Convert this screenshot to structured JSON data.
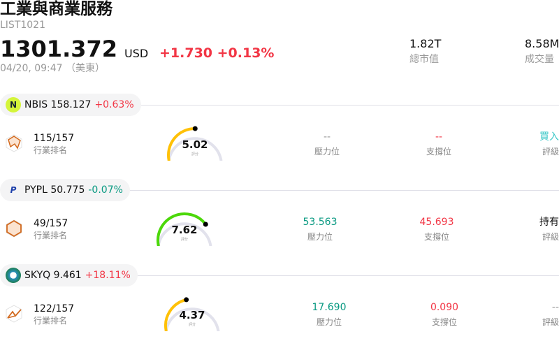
{
  "header": {
    "title": "工業與商業服務",
    "code": "LIST1021",
    "price": "1301.372",
    "currency": "USD",
    "change": "+1.730 +0.13%",
    "time": "04/20, 09:47 （美東）",
    "stats": [
      {
        "value": "1.82T",
        "label": "總市值"
      },
      {
        "value": "8.58M",
        "label": "成交量"
      }
    ]
  },
  "colors": {
    "up": "#f23645",
    "down": "#089981",
    "buy": "#3cc8c8",
    "gauge_track": "#e2e2ec"
  },
  "stocks": [
    {
      "ticker": "NBIS 158.127",
      "change": "+0.63%",
      "change_dir": "up",
      "logo": "nbis-logo",
      "rank": "115/157",
      "rank_label": "行業排名",
      "score": "5.02",
      "score_value": 5.02,
      "score_label": "評分",
      "gauge_color": "#ffc107",
      "resistance": "--",
      "resistance_label": "壓力位",
      "support": "--",
      "support_label": "支撐位",
      "rating": "買入",
      "rating_label": "評級"
    },
    {
      "ticker": "PYPL 50.775",
      "change": "-0.07%",
      "change_dir": "down",
      "logo": "paypal-logo",
      "rank": "49/157",
      "rank_label": "行業排名",
      "score": "7.62",
      "score_value": 7.62,
      "score_label": "評分",
      "gauge_color": "#4cd80a",
      "resistance": "53.563",
      "resistance_label": "壓力位",
      "support": "45.693",
      "support_label": "支撐位",
      "rating": "持有",
      "rating_label": "評級"
    },
    {
      "ticker": "SKYQ 9.461",
      "change": "+18.11%",
      "change_dir": "up",
      "logo": "skyq-logo",
      "rank": "122/157",
      "rank_label": "行業排名",
      "score": "4.37",
      "score_value": 4.37,
      "score_label": "評分",
      "gauge_color": "#ffc107",
      "resistance": "17.690",
      "resistance_label": "壓力位",
      "support": "0.090",
      "support_label": "支撐位",
      "rating": "--",
      "rating_label": "評級"
    }
  ]
}
